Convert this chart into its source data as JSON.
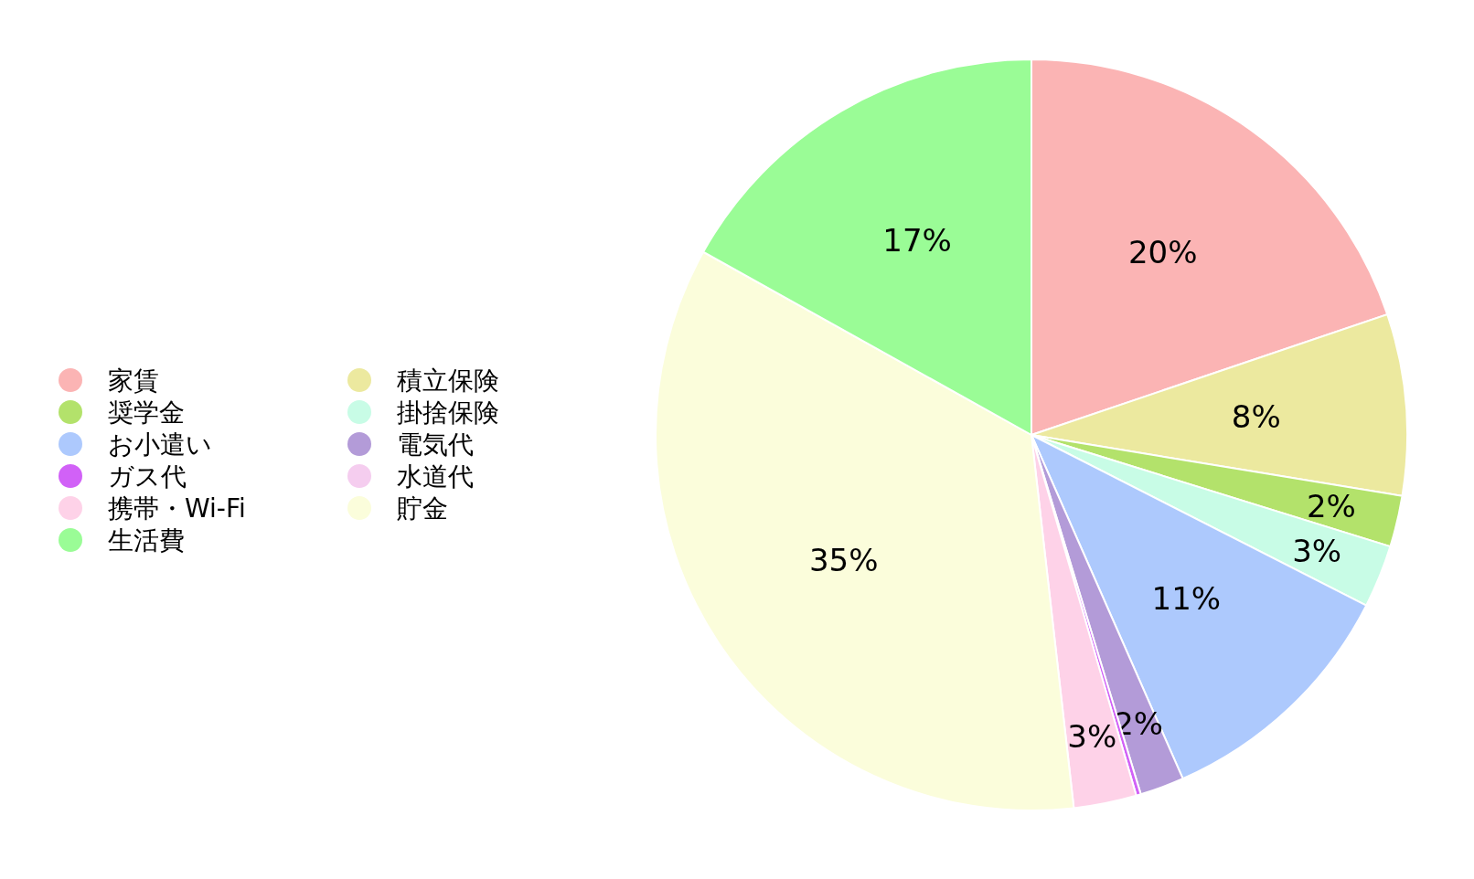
{
  "chart_data": {
    "type": "pie",
    "categories": [
      "家賃",
      "積立保険",
      "奨学金",
      "掛捨保険",
      "お小遣い",
      "電気代",
      "ガス代",
      "水道代",
      "携帯・Wi-Fi",
      "貯金",
      "生活費"
    ],
    "values": [
      19.8,
      7.8,
      2.2,
      2.7,
      10.9,
      1.9,
      0.2,
      0,
      2.7,
      34.9,
      16.9
    ],
    "colors": [
      "#fbb4b4",
      "#ece99f",
      "#b3e26b",
      "#c8fce6",
      "#adc9fd",
      "#b39bd8",
      "#d161f7",
      "#f5cdef",
      "#fed2e8",
      "#fbfddb",
      "#9afc96"
    ],
    "value_labels": [
      "20%",
      "8%",
      "2%",
      "3%",
      "11%",
      "2%",
      null,
      null,
      "3%",
      "35%",
      "17%"
    ],
    "legend": "left"
  }
}
